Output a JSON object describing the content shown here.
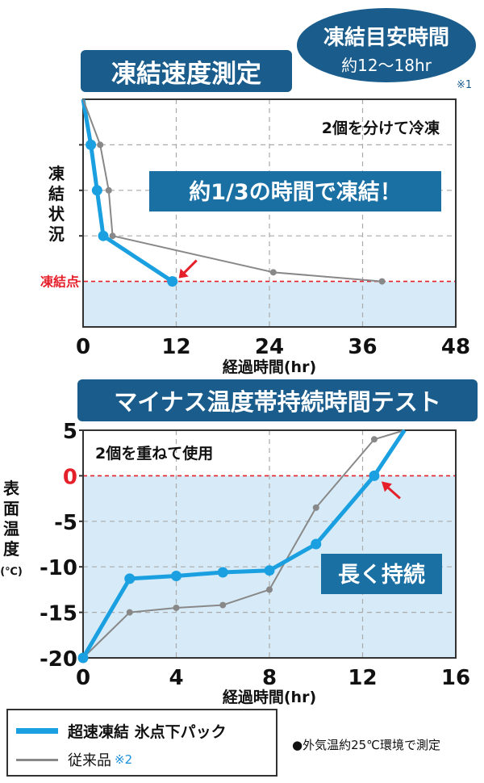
{
  "badge": {
    "line1": "凍結目安時間",
    "line2": "約12〜18hr",
    "note": "※1"
  },
  "chart1": {
    "title": "凍結速度測定",
    "ylabel": "凍結状況",
    "freeze_point_label": "凍結点",
    "xlabel": "経過時間(hr)",
    "annotation": "2個を分けて冷凍",
    "highlight": "約1/3の時間で凍結！"
  },
  "chart2": {
    "title": "マイナス温度帯持続時間テスト",
    "ylabel_chars": [
      "表",
      "面",
      "温",
      "度",
      "(℃)"
    ],
    "xlabel": "経過時間(hr)",
    "annotation": "2個を重ねて使用",
    "highlight": "長く持続"
  },
  "legend": {
    "item1": "超速凍結 氷点下パック",
    "item2": "従来品",
    "item2_note": "※2",
    "colors": {
      "item1": "#1aa0e0",
      "item2": "#888888"
    }
  },
  "footnote": "●外気温約25℃環境で測定",
  "chart_data": [
    {
      "type": "line",
      "title": "凍結速度測定",
      "xlabel": "経過時間(hr)",
      "ylabel": "凍結状況",
      "xticks": [
        "0",
        "12",
        "24",
        "36",
        "48"
      ],
      "xlim": [
        0,
        48
      ],
      "ylim": [
        0,
        1
      ],
      "grid": true,
      "series": [
        {
          "name": "超速凍結 氷点下パック",
          "color": "#1aa0e0",
          "x": [
            0,
            1.0,
            1.8,
            2.6,
            11.5
          ],
          "y": [
            1.0,
            0.8,
            0.6,
            0.4,
            0.2
          ]
        },
        {
          "name": "従来品",
          "color": "#888888",
          "x": [
            0,
            2.2,
            3.3,
            3.8,
            24.5,
            38.5
          ],
          "y": [
            1.0,
            0.8,
            0.6,
            0.4,
            0.24,
            0.2
          ]
        }
      ]
    },
    {
      "type": "line",
      "title": "マイナス温度帯持続時間テスト",
      "xlabel": "経過時間(hr)",
      "ylabel": "表面温度(℃)",
      "xticks": [
        "0",
        "4",
        "8",
        "12",
        "16"
      ],
      "yticks": [
        "5",
        "0",
        "-5",
        "-10",
        "-15",
        "-20"
      ],
      "xlim": [
        0,
        16
      ],
      "ylim": [
        -20,
        5
      ],
      "grid": true,
      "series": [
        {
          "name": "超速凍結 氷点下パック",
          "color": "#1aa0e0",
          "x": [
            0,
            2.0,
            4.0,
            6.0,
            8.0,
            10.0,
            12.5,
            13.8
          ],
          "y": [
            -20,
            -11.3,
            -11.0,
            -10.6,
            -10.4,
            -7.5,
            0,
            5
          ],
          "markers": [
            1,
            1,
            1,
            1,
            1,
            1,
            1,
            0
          ]
        },
        {
          "name": "従来品",
          "color": "#888888",
          "x": [
            0,
            2.0,
            4.0,
            6.0,
            8.0,
            10.0,
            12.5,
            13.8
          ],
          "y": [
            -20,
            -15.0,
            -14.5,
            -14.2,
            -12.5,
            -3.5,
            4.0,
            5
          ],
          "markers": [
            0,
            1,
            1,
            1,
            1,
            1,
            1,
            0
          ]
        }
      ]
    }
  ]
}
